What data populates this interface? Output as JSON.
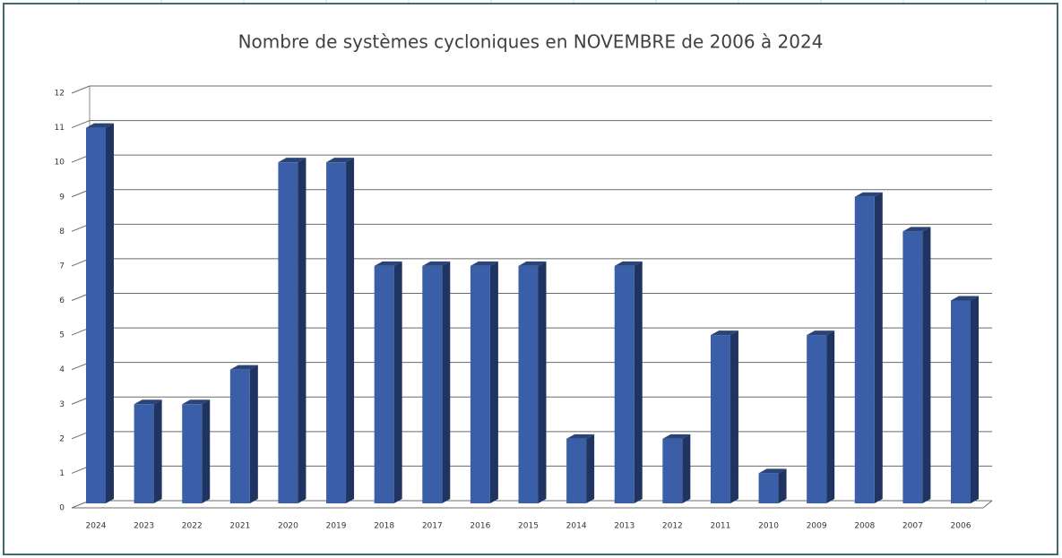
{
  "chart_data": {
    "type": "bar3d",
    "title": "Nombre de systèmes cycloniques en NOVEMBRE de 2006 à 2024",
    "categories": [
      "2024",
      "2023",
      "2022",
      "2021",
      "2020",
      "2019",
      "2018",
      "2017",
      "2016",
      "2015",
      "2014",
      "2013",
      "2012",
      "2011",
      "2010",
      "2009",
      "2008",
      "2007",
      "2006"
    ],
    "values": [
      11,
      3,
      3,
      4,
      10,
      10,
      7,
      7,
      7,
      7,
      2,
      7,
      2,
      5,
      1,
      5,
      9,
      8,
      6
    ],
    "color": "#3a5fa8",
    "ylim": [
      0,
      12
    ],
    "yticks": [
      0,
      1,
      2,
      3,
      4,
      5,
      6,
      7,
      8,
      9,
      10,
      11,
      12
    ],
    "grid": true
  }
}
